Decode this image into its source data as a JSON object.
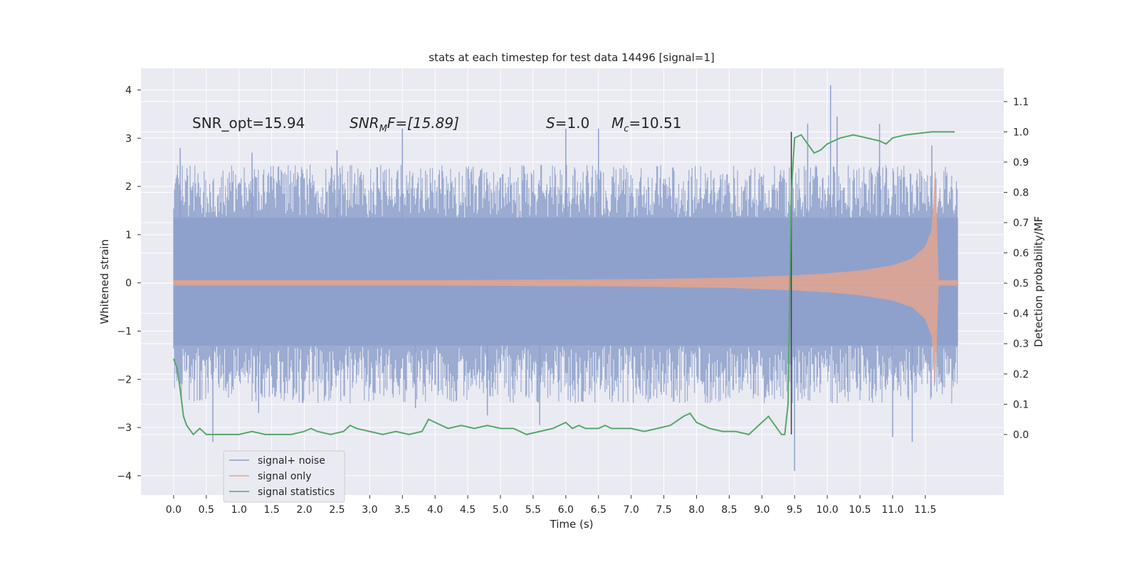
{
  "chart_data": {
    "type": "line",
    "title": "stats at each timestep for test data 14496 [signal=1]",
    "xlabel": "Time (s)",
    "ylabel": "Whitened strain",
    "y2label": "Detection probability/MF",
    "xlim": [
      -0.5,
      12.7
    ],
    "ylim": [
      -4.4,
      4.45
    ],
    "y2lim": [
      -0.2,
      1.21
    ],
    "x_ticks": [
      "0.0",
      "0.5",
      "1.0",
      "1.5",
      "2.0",
      "2.5",
      "3.0",
      "3.5",
      "4.0",
      "4.5",
      "5.0",
      "5.5",
      "6.0",
      "6.5",
      "7.0",
      "7.5",
      "8.0",
      "8.5",
      "9.0",
      "9.5",
      "10.0",
      "10.5",
      "11.0",
      "11.5"
    ],
    "y_ticks": [
      "4",
      "3",
      "2",
      "1",
      "0",
      "−1",
      "−2",
      "−3",
      "−4"
    ],
    "y2_ticks": [
      "1.1",
      "1.0",
      "0.9",
      "0.8",
      "0.7",
      "0.6",
      "0.5",
      "0.4",
      "0.3",
      "0.2",
      "0.1",
      "0.0"
    ],
    "annotations": {
      "snr_opt": "SNR_opt=15.94",
      "snr_mf": "SNR",
      "snr_mf_sub": "M",
      "snr_mf_tail": "F=[15.89]",
      "s_value": "S",
      "s_tail": "=1.0",
      "mc_value": "M",
      "mc_sub": "c",
      "mc_tail": "=10.51"
    },
    "detection_time": 9.45,
    "series": [
      {
        "name": "signal+ noise",
        "color": "#8da0cb",
        "x_range": [
          0.0,
          12.0
        ],
        "band_low": -1.3,
        "band_high": 1.35,
        "spikes_up": [
          [
            0.1,
            2.8
          ],
          [
            1.2,
            2.7
          ],
          [
            2.5,
            2.75
          ],
          [
            3.5,
            3.2
          ],
          [
            6.0,
            3.2
          ],
          [
            6.5,
            3.2
          ],
          [
            9.7,
            3.3
          ],
          [
            10.05,
            4.1
          ],
          [
            10.15,
            3.45
          ],
          [
            10.8,
            3.3
          ],
          [
            11.6,
            2.85
          ]
        ],
        "spikes_down": [
          [
            0.6,
            -3.3
          ],
          [
            1.3,
            -2.7
          ],
          [
            3.7,
            -2.6
          ],
          [
            4.8,
            -2.75
          ],
          [
            5.6,
            -2.95
          ],
          [
            9.5,
            -3.9
          ],
          [
            11.0,
            -3.2
          ],
          [
            11.3,
            -3.3
          ]
        ]
      },
      {
        "name": "signal only",
        "color": "#e8a58c",
        "x": [
          0.0,
          4.0,
          7.0,
          8.5,
          9.5,
          10.0,
          10.5,
          11.0,
          11.3,
          11.5,
          11.6,
          11.65,
          11.7,
          12.0
        ],
        "envelope": [
          0.05,
          0.05,
          0.07,
          0.1,
          0.15,
          0.19,
          0.25,
          0.36,
          0.5,
          0.75,
          1.1,
          2.3,
          0.05,
          0.05
        ]
      },
      {
        "name": "signal statistics",
        "color": "#55a868",
        "x": [
          0.0,
          0.05,
          0.1,
          0.15,
          0.2,
          0.3,
          0.4,
          0.5,
          0.6,
          0.8,
          1.0,
          1.2,
          1.4,
          1.6,
          1.8,
          2.0,
          2.1,
          2.2,
          2.4,
          2.6,
          2.7,
          2.8,
          3.0,
          3.2,
          3.4,
          3.6,
          3.8,
          3.9,
          4.0,
          4.2,
          4.4,
          4.6,
          4.8,
          5.0,
          5.2,
          5.4,
          5.6,
          5.8,
          6.0,
          6.1,
          6.2,
          6.3,
          6.5,
          6.6,
          6.7,
          6.8,
          7.0,
          7.2,
          7.4,
          7.6,
          7.8,
          7.9,
          8.0,
          8.2,
          8.4,
          8.6,
          8.8,
          9.0,
          9.1,
          9.2,
          9.3,
          9.35,
          9.4,
          9.45,
          9.5,
          9.6,
          9.7,
          9.8,
          9.9,
          10.0,
          10.2,
          10.4,
          10.6,
          10.8,
          10.9,
          11.0,
          11.2,
          11.4,
          11.6,
          11.8,
          11.95
        ],
        "y": [
          0.25,
          0.22,
          0.15,
          0.06,
          0.03,
          0.0,
          0.02,
          0.0,
          0.0,
          0.0,
          0.0,
          0.01,
          0.0,
          0.0,
          0.0,
          0.01,
          0.02,
          0.01,
          0.0,
          0.01,
          0.03,
          0.02,
          0.01,
          0.0,
          0.01,
          0.0,
          0.01,
          0.05,
          0.04,
          0.02,
          0.03,
          0.02,
          0.03,
          0.02,
          0.02,
          0.0,
          0.01,
          0.02,
          0.04,
          0.02,
          0.03,
          0.02,
          0.02,
          0.03,
          0.02,
          0.02,
          0.02,
          0.01,
          0.02,
          0.03,
          0.06,
          0.07,
          0.04,
          0.02,
          0.01,
          0.01,
          0.0,
          0.04,
          0.06,
          0.03,
          0.0,
          0.0,
          0.1,
          0.8,
          0.98,
          0.99,
          0.96,
          0.93,
          0.94,
          0.96,
          0.98,
          0.99,
          0.98,
          0.97,
          0.96,
          0.98,
          0.99,
          0.995,
          1.0,
          1.0,
          1.0
        ]
      }
    ],
    "legend": {
      "placement": "lower-left",
      "entries": [
        "signal+ noise",
        "signal only",
        "signal statistics"
      ]
    },
    "grid": true
  },
  "colors": {
    "plot_background": "#eaeaf2",
    "grid": "#ffffff",
    "detection_line": "#404040"
  }
}
